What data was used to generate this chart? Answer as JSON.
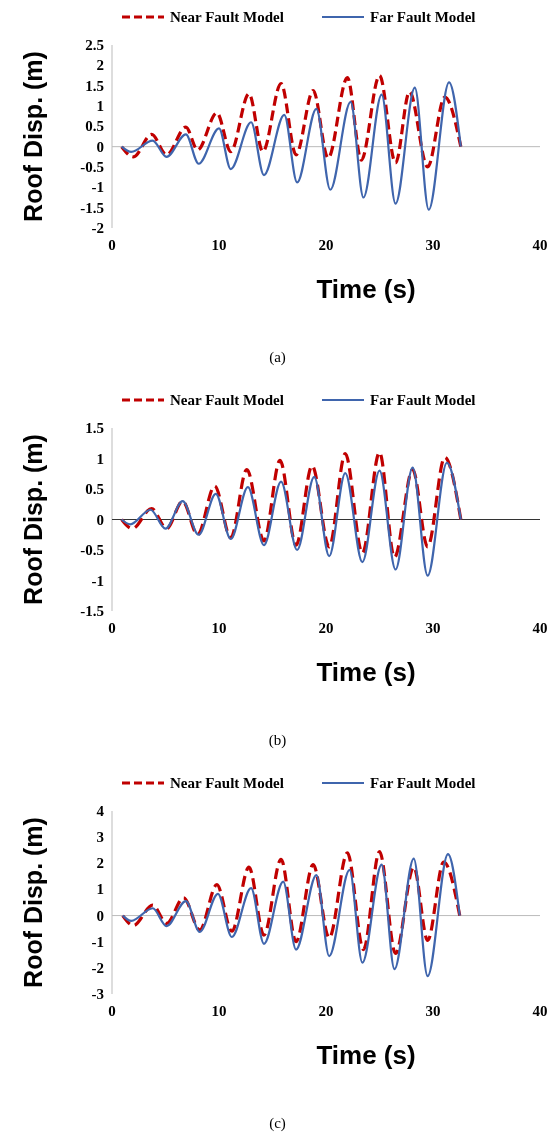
{
  "chart_data": [
    {
      "type": "line",
      "xlabel": "Time (s)",
      "ylabel": "Roof Disp. (m)",
      "annotations": [
        "(a)"
      ],
      "xlim": [
        0,
        40
      ],
      "xticks": [
        0,
        10,
        20,
        30,
        40
      ],
      "ylim": [
        -2,
        2.5
      ],
      "yticks": [
        -2,
        -1.5,
        -1,
        -0.5,
        0,
        0.5,
        1,
        1.5,
        2,
        2.5
      ],
      "legend": "top",
      "marker": "none",
      "series": [
        {
          "name": "Near Fault Model",
          "color": "#c00000",
          "line_style": "dashed",
          "x": [
            0.9,
            2,
            3.7,
            5.1,
            6.9,
            8,
            9.8,
            11.1,
            12.8,
            14.1,
            15.8,
            17.2,
            18.8,
            20.2,
            22,
            23.3,
            25,
            26.5,
            27.8,
            29.5,
            31.1,
            32.6
          ],
          "values": [
            0,
            -0.25,
            0.3,
            -0.2,
            0.48,
            -0.08,
            0.83,
            -0.12,
            1.3,
            -0.12,
            1.55,
            -0.2,
            1.38,
            -0.28,
            1.7,
            -0.33,
            1.75,
            -0.4,
            1.35,
            -0.5,
            1.22,
            0
          ]
        },
        {
          "name": "Far Fault Model",
          "color": "#3f65ad",
          "line_style": "solid",
          "x": [
            0.9,
            1.8,
            3.8,
            5.1,
            6.9,
            8.1,
            10,
            11.1,
            13,
            14.2,
            16.1,
            17.3,
            19.1,
            20.4,
            22.3,
            23.5,
            25.2,
            26.5,
            28.3,
            29.6,
            31.5,
            32.6
          ],
          "values": [
            0,
            -0.13,
            0.15,
            -0.25,
            0.3,
            -0.42,
            0.45,
            -0.55,
            0.6,
            -0.7,
            0.78,
            -0.88,
            0.93,
            -1.06,
            1.1,
            -1.25,
            1.28,
            -1.4,
            1.45,
            -1.55,
            1.58,
            0
          ]
        }
      ]
    },
    {
      "type": "line",
      "xlabel": "Time (s)",
      "ylabel": "Roof Disp. (m)",
      "annotations": [
        "(b)"
      ],
      "xlim": [
        0,
        40
      ],
      "xticks": [
        0,
        10,
        20,
        30,
        40
      ],
      "ylim": [
        -1.5,
        1.5
      ],
      "yticks": [
        -1.5,
        -1,
        -0.5,
        0,
        0.5,
        1,
        1.5
      ],
      "legend": "top",
      "marker": "none",
      "series": [
        {
          "name": "Near Fault Model",
          "color": "#c00000",
          "line_style": "dashed",
          "x": [
            0.9,
            1.9,
            3.7,
            5.1,
            6.6,
            8,
            9.6,
            11.1,
            12.6,
            14.2,
            15.7,
            17.2,
            18.7,
            20.3,
            21.8,
            23.4,
            25,
            26.4,
            28.1,
            29.5,
            31.1,
            32.6
          ],
          "values": [
            0,
            -0.15,
            0.18,
            -0.15,
            0.3,
            -0.25,
            0.55,
            -0.3,
            0.82,
            -0.35,
            0.97,
            -0.42,
            0.88,
            -0.45,
            1.08,
            -0.55,
            1.1,
            -0.62,
            0.82,
            -0.45,
            1.02,
            0
          ]
        },
        {
          "name": "Far Fault Model",
          "color": "#3f65ad",
          "line_style": "solid",
          "x": [
            0.9,
            1.7,
            3.6,
            5,
            6.6,
            8.1,
            9.7,
            11.1,
            12.7,
            14.2,
            15.8,
            17.3,
            18.9,
            20.3,
            21.8,
            23.4,
            25,
            26.5,
            28.1,
            29.5,
            31.3,
            32.6
          ],
          "values": [
            0,
            -0.08,
            0.16,
            -0.15,
            0.3,
            -0.25,
            0.42,
            -0.32,
            0.53,
            -0.42,
            0.62,
            -0.5,
            0.7,
            -0.6,
            0.76,
            -0.7,
            0.8,
            -0.82,
            0.85,
            -0.92,
            0.93,
            0
          ]
        }
      ]
    },
    {
      "type": "line",
      "xlabel": "Time (s)",
      "ylabel": "Roof Disp. (m)",
      "annotations": [
        "(c)"
      ],
      "xlim": [
        0,
        40
      ],
      "xticks": [
        0,
        10,
        20,
        30,
        40
      ],
      "ylim": [
        -3,
        4
      ],
      "yticks": [
        -3,
        -2,
        -1,
        0,
        1,
        2,
        3,
        4
      ],
      "legend": "top",
      "marker": "none",
      "series": [
        {
          "name": "Near Fault Model",
          "color": "#c00000",
          "line_style": "dashed",
          "x": [
            1,
            2,
            3.8,
            5.1,
            6.7,
            8.2,
            9.8,
            11.2,
            12.8,
            14.2,
            15.8,
            17.2,
            18.8,
            20.3,
            22,
            23.5,
            25,
            26.5,
            28.2,
            29.5,
            31,
            32.5
          ],
          "values": [
            0,
            -0.38,
            0.4,
            -0.3,
            0.68,
            -0.55,
            1.18,
            -0.6,
            1.85,
            -0.75,
            2.15,
            -1,
            1.95,
            -0.85,
            2.4,
            -1.3,
            2.45,
            -1.45,
            1.85,
            -0.95,
            2.05,
            0
          ]
        },
        {
          "name": "Far Fault Model",
          "color": "#3f65ad",
          "line_style": "solid",
          "x": [
            1,
            1.8,
            3.8,
            5.1,
            6.9,
            8.2,
            9.9,
            11.2,
            13,
            14.2,
            16,
            17.2,
            19.1,
            20.3,
            22.2,
            23.4,
            25.2,
            26.4,
            28.2,
            29.5,
            31.4,
            32.5
          ],
          "values": [
            0,
            -0.2,
            0.28,
            -0.4,
            0.55,
            -0.62,
            0.83,
            -0.82,
            1.05,
            -1.08,
            1.3,
            -1.3,
            1.55,
            -1.55,
            1.75,
            -1.8,
            1.95,
            -2.05,
            2.18,
            -2.32,
            2.35,
            0
          ]
        }
      ]
    }
  ]
}
